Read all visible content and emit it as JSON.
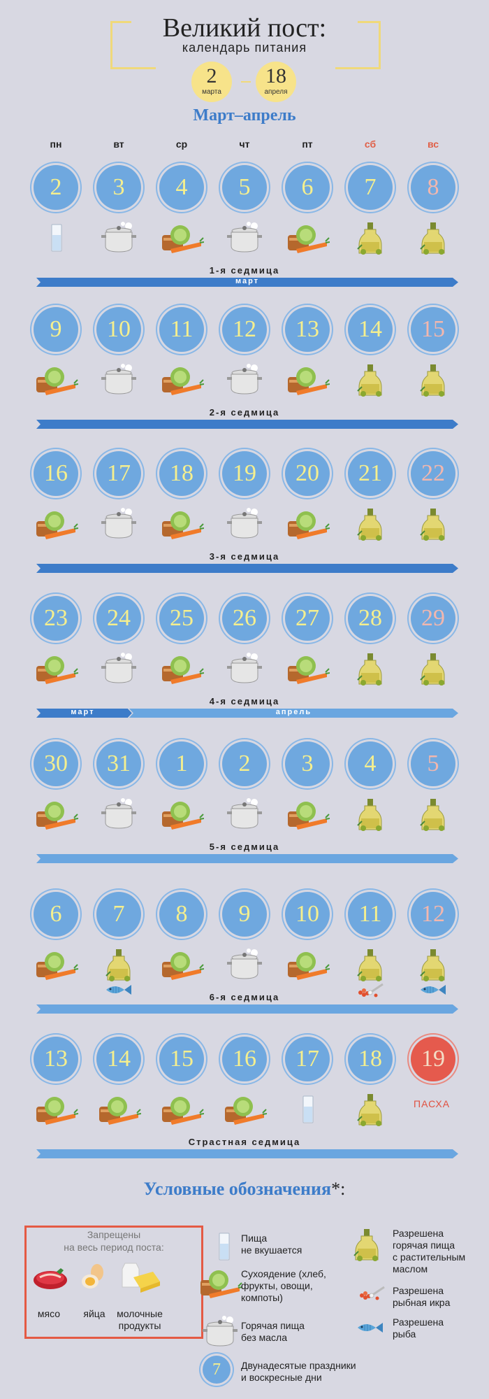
{
  "header": {
    "title": "Великий пост:",
    "subtitle": "календарь питания",
    "start_day": "2",
    "start_month": "марта",
    "end_day": "18",
    "end_month": "апреля",
    "range": "Март–апрель"
  },
  "weekdays": [
    "пн",
    "вт",
    "ср",
    "чт",
    "пт",
    "сб",
    "вс"
  ],
  "weeks": [
    {
      "label": "1-я седмица",
      "days": [
        "2",
        "3",
        "4",
        "5",
        "6",
        "7",
        "8"
      ],
      "food": [
        "water",
        "pot",
        "veg",
        "pot",
        "veg",
        "oil",
        "oil"
      ],
      "extra": [
        null,
        null,
        null,
        null,
        null,
        null,
        null
      ],
      "band": [
        {
          "text": "март",
          "from": 0,
          "to": 1
        }
      ]
    },
    {
      "label": "2-я седмица",
      "days": [
        "9",
        "10",
        "11",
        "12",
        "13",
        "14",
        "15"
      ],
      "food": [
        "veg",
        "pot",
        "veg",
        "pot",
        "veg",
        "oil",
        "oil"
      ],
      "extra": [
        null,
        null,
        null,
        null,
        null,
        null,
        null
      ],
      "band": [
        {
          "text": "",
          "from": 0,
          "to": 1
        }
      ]
    },
    {
      "label": "3-я седмица",
      "days": [
        "16",
        "17",
        "18",
        "19",
        "20",
        "21",
        "22"
      ],
      "food": [
        "veg",
        "pot",
        "veg",
        "pot",
        "veg",
        "oil",
        "oil"
      ],
      "extra": [
        null,
        null,
        null,
        null,
        null,
        null,
        null
      ],
      "band": [
        {
          "text": "",
          "from": 0,
          "to": 1
        }
      ]
    },
    {
      "label": "4-я седмица",
      "days": [
        "23",
        "24",
        "25",
        "26",
        "27",
        "28",
        "29"
      ],
      "food": [
        "veg",
        "pot",
        "veg",
        "pot",
        "veg",
        "oil",
        "oil"
      ],
      "extra": [
        null,
        null,
        null,
        null,
        null,
        null,
        null
      ],
      "band": [
        {
          "text": "март",
          "from": 0,
          "to": 0.22
        },
        {
          "text": "апрель",
          "from": 0.22,
          "to": 1
        }
      ]
    },
    {
      "label": "5-я седмица",
      "days": [
        "30",
        "31",
        "1",
        "2",
        "3",
        "4",
        "5"
      ],
      "food": [
        "veg",
        "pot",
        "veg",
        "pot",
        "veg",
        "oil",
        "oil"
      ],
      "extra": [
        null,
        null,
        null,
        null,
        null,
        null,
        null
      ],
      "band": [
        {
          "text": "",
          "from": 0,
          "to": 1
        }
      ]
    },
    {
      "label": "6-я седмица",
      "days": [
        "6",
        "7",
        "8",
        "9",
        "10",
        "11",
        "12"
      ],
      "food": [
        "veg",
        "oil",
        "veg",
        "pot",
        "veg",
        "oil",
        "oil"
      ],
      "extra": [
        null,
        "fish",
        null,
        null,
        null,
        "caviar",
        "fish"
      ],
      "band": [
        {
          "text": "",
          "from": 0,
          "to": 1
        }
      ]
    },
    {
      "label": "Страстная седмица",
      "days": [
        "13",
        "14",
        "15",
        "16",
        "17",
        "18",
        "19"
      ],
      "food": [
        "veg",
        "veg",
        "veg",
        "veg",
        "water",
        "oil",
        null
      ],
      "extra": [
        null,
        null,
        null,
        null,
        null,
        null,
        null
      ],
      "band": [
        {
          "text": "",
          "from": 0,
          "to": 1
        }
      ]
    }
  ],
  "easter_label": "ПАСХА",
  "colors": {
    "background": "#d8d8e2",
    "circle": "#6fa8df",
    "number": "#f5ef8e",
    "sunday_number": "#f2b7ae",
    "easter": "#e55a4d",
    "band_march": "#3d7cc9",
    "band_april": "#6aa6e0",
    "accent_red": "#e45a44"
  },
  "legend": {
    "title": "Условные обозначения",
    "title_mark": "*:",
    "forbidden_title": "Запрещены",
    "forbidden_title2": "на весь период поста:",
    "forbidden_meat": "мясо",
    "forbidden_eggs": "яйца",
    "forbidden_dairy1": "молочные",
    "forbidden_dairy2": "продукты",
    "water_1": "Пища",
    "water_2": "не вкушается",
    "veg_1": "Сухоядение (хлеб,",
    "veg_2": "фрукты, овощи,",
    "veg_3": "компоты)",
    "pot_1": "Горячая пища",
    "pot_2": "без масла",
    "holiday_num": "7",
    "holiday_1": "Двунадесятые праздники",
    "holiday_2": "и воскресные дни",
    "oil_1": "Разрешена",
    "oil_2": "горячая пища",
    "oil_3": "с растительным",
    "oil_4": "маслом",
    "caviar_1": "Разрешена",
    "caviar_2": "рыбная икра",
    "fish_1": "Разрешена",
    "fish_2": "рыба"
  }
}
